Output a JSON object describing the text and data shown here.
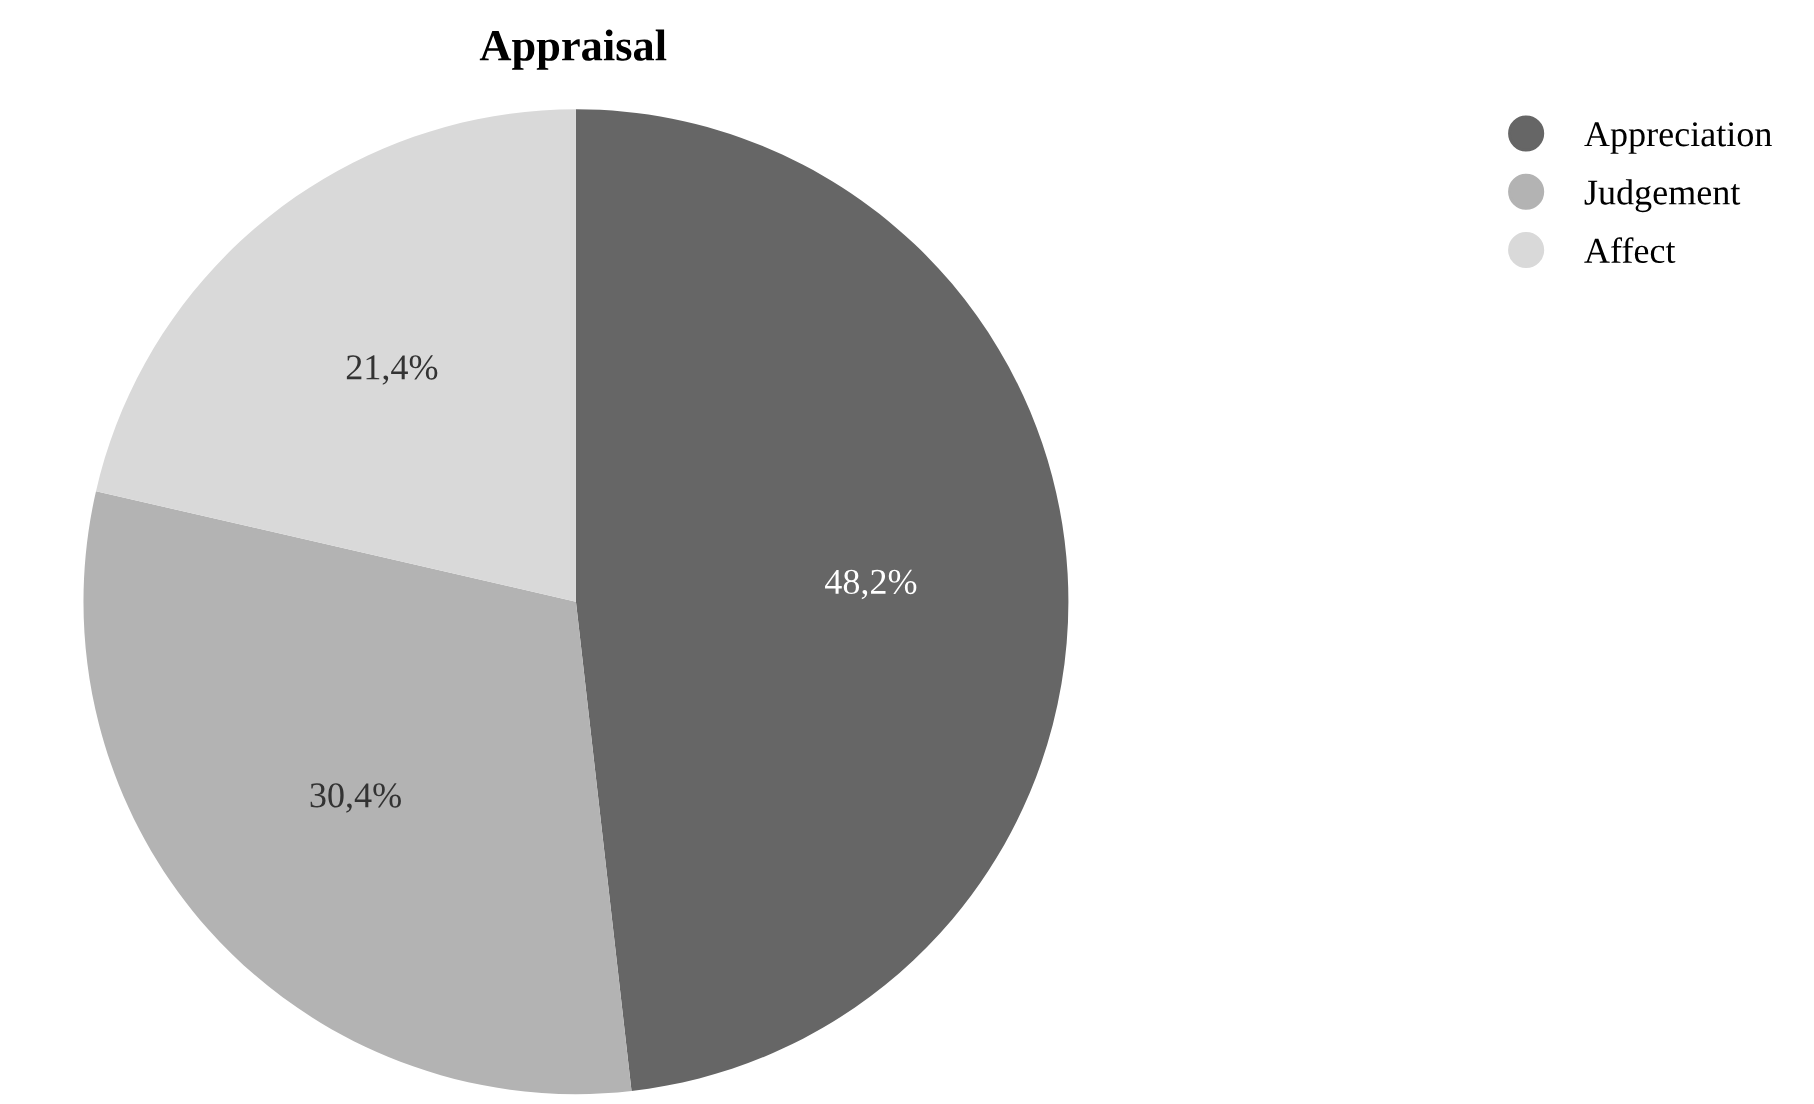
{
  "chart_data": {
    "type": "pie",
    "title": "Appraisal",
    "categories": [
      "Appreciation",
      "Judgement",
      "Affect"
    ],
    "values": [
      48.2,
      30.4,
      21.4
    ],
    "value_labels": [
      "48,2%",
      "30,4%",
      "21,4%"
    ],
    "colors": [
      "#666666",
      "#b3b3b3",
      "#d9d9d9"
    ],
    "legend": "top right"
  }
}
